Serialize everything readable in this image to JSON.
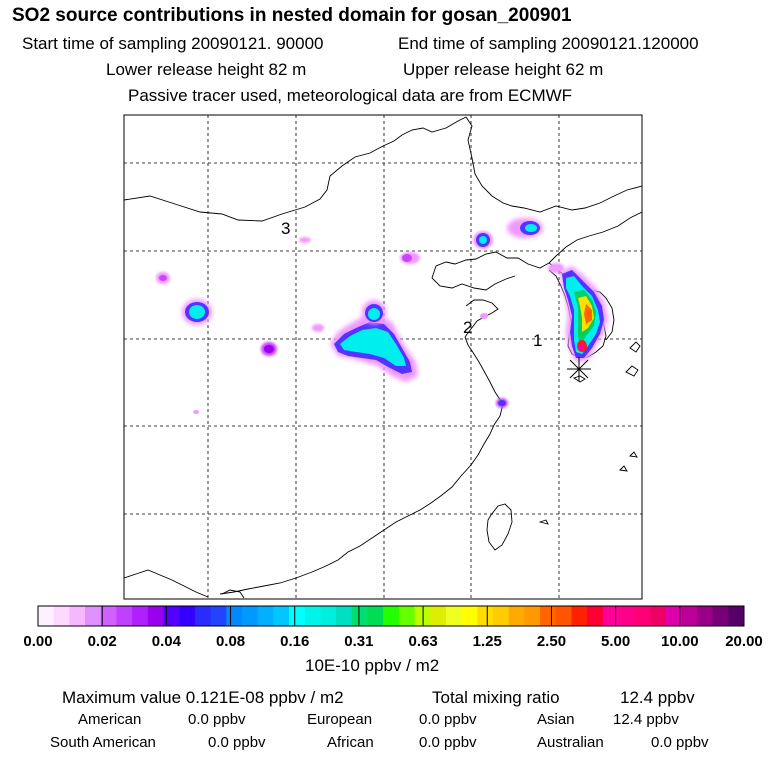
{
  "header": {
    "title": "SO2 source contributions in nested domain for gosan_200901",
    "start_label": "Start time of sampling 20090121. 90000",
    "end_label": "End time of sampling 20090121.120000",
    "lower_label": "Lower release height   82 m",
    "upper_label": "Upper release height   62 m",
    "tracer_line": "Passive tracer used, meteorological data are from ECMWF"
  },
  "map": {
    "region_labels": [
      {
        "id": "1",
        "text": "1"
      },
      {
        "id": "2",
        "text": "2"
      },
      {
        "id": "3",
        "text": "3"
      }
    ],
    "receptor_marker": "asterisk-icon",
    "colors": {
      "low": "#ee99ff",
      "mid_low": "#a600ff",
      "blue": "#2255ff",
      "cyan": "#00ffee",
      "green": "#00d060",
      "yellow": "#ffe000",
      "orange": "#ff6600",
      "red": "#ff1a1a",
      "magenta": "#ff00aa"
    }
  },
  "colorbar": {
    "tick_labels": [
      "0.00",
      "0.02",
      "0.04",
      "0.08",
      "0.16",
      "0.31",
      "0.63",
      "1.25",
      "2.50",
      "5.00",
      "10.00",
      "20.00"
    ],
    "colors": [
      "#fff0ff",
      "#ffd8ff",
      "#f7b8ff",
      "#e090ff",
      "#d060ff",
      "#c040ff",
      "#b020ff",
      "#9900ee",
      "#5500ff",
      "#3300ff",
      "#2b2bff",
      "#2244ff",
      "#0088ff",
      "#0099ff",
      "#00b0ff",
      "#00c8ff",
      "#00ffff",
      "#00f5e8",
      "#00eedd",
      "#00e0c0",
      "#00e070",
      "#00dd55",
      "#22ff00",
      "#66ff00",
      "#bbff00",
      "#ddee00",
      "#eeff22",
      "#ffff00",
      "#ffdd00",
      "#ffcc00",
      "#ffaa00",
      "#ff9900",
      "#ff6600",
      "#ff5500",
      "#ff2200",
      "#ff0033",
      "#ff0099",
      "#ff0088",
      "#ff0077",
      "#ee0066",
      "#dd00aa",
      "#bb0099",
      "#990088",
      "#770077",
      "#550066"
    ],
    "units": "10E-10 ppbv / m2"
  },
  "stats": {
    "max_value": "Maximum value  0.121E-08 ppbv / m2",
    "total_mixing": "Total mixing ratio",
    "total_value": "12.4 ppbv",
    "regions": [
      {
        "name": "American",
        "value": "0.0 ppbv"
      },
      {
        "name": "European",
        "value": "0.0 ppbv"
      },
      {
        "name": "Asian",
        "value": "12.4 ppbv"
      },
      {
        "name": "South American",
        "value": "0.0 ppbv"
      },
      {
        "name": "African",
        "value": "0.0 ppbv"
      },
      {
        "name": "Australian",
        "value": "0.0 ppbv"
      }
    ]
  }
}
